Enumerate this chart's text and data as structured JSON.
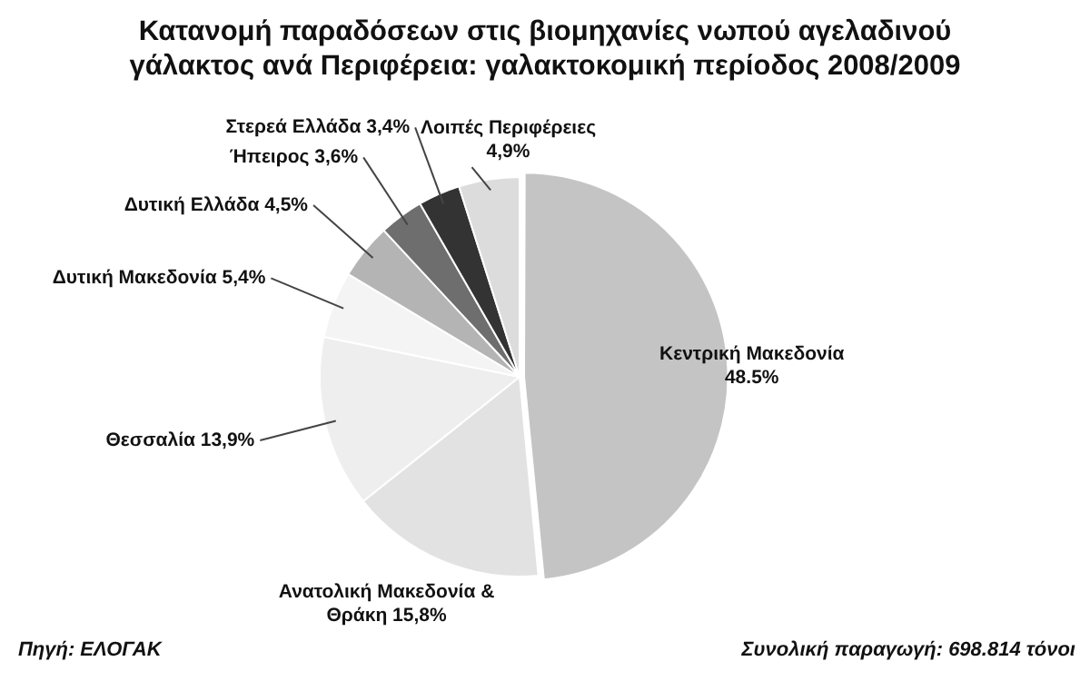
{
  "chart_data": {
    "type": "pie",
    "title": "Κατανομή παραδόσεων στις βιομηχανίες νωπού αγελαδινού γάλακτος ανά Περιφέρεια: γαλακτοκομική περίοδος 2008/2009",
    "categories": [
      "Κεντρική Μακεδονία",
      "Ανατολική Μακεδονία & Θράκη",
      "Θεσσαλία",
      "Δυτική Μακεδονία",
      "Δυτική Ελλάδα",
      "Ήπειρος",
      "Στερεά Ελλάδα",
      "Λοιπές Περιφέρειες"
    ],
    "values": [
      48.5,
      15.8,
      13.9,
      5.4,
      4.5,
      3.6,
      3.4,
      4.9
    ],
    "value_labels": [
      "48.5%",
      "15,8%",
      "13,9%",
      "5,4%",
      "4,5%",
      "3,6%",
      "3,4%",
      "4,9%"
    ],
    "colors": [
      "#c4c4c4",
      "#e2e2e2",
      "#eeeeee",
      "#f4f4f4",
      "#b4b4b4",
      "#6e6e6e",
      "#333333",
      "#dcdcdc"
    ],
    "legend": false,
    "annotations": [
      "Πηγή: ΕΛΟΓΑΚ",
      "Συνολική παραγωγή: 698.814 τόνοι"
    ]
  }
}
